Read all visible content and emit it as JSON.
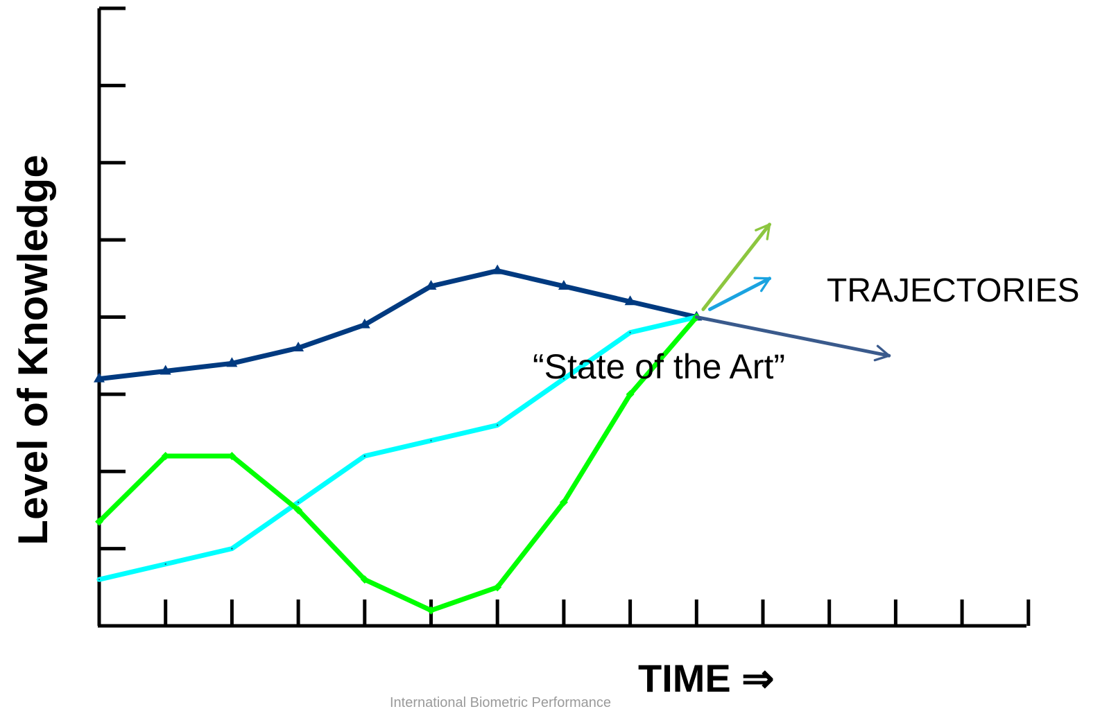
{
  "chart_data": {
    "type": "line",
    "ylabel": "Level of Knowledge",
    "xlabel": "TIME ⇒",
    "x_ticks": 15,
    "y_ticks": 9,
    "xlim": [
      0,
      14
    ],
    "ylim": [
      0,
      8
    ],
    "grid": false,
    "legend": "none",
    "annotations": {
      "trajectories": "TRAJECTORIES",
      "state_of_the_art": "“State of the Art”"
    },
    "footer_text": "International Biometric Performance",
    "series": [
      {
        "color": "#003a80",
        "marker": "triangle",
        "x": [
          0,
          1,
          2,
          3,
          4,
          5,
          6,
          7,
          8,
          9
        ],
        "y": [
          3.2,
          3.3,
          3.4,
          3.6,
          3.9,
          4.4,
          4.6,
          4.4,
          4.2,
          4.0
        ]
      },
      {
        "color": "#00ffff",
        "marker": "dot",
        "x": [
          0,
          1,
          2,
          3,
          4,
          5,
          6,
          7,
          8,
          9
        ],
        "y": [
          0.6,
          0.8,
          1.0,
          1.6,
          2.2,
          2.4,
          2.6,
          3.2,
          3.8,
          4.0
        ]
      },
      {
        "color": "#00ff00",
        "marker": "diamond",
        "x": [
          0,
          1,
          2,
          3,
          4,
          5,
          6,
          7,
          8,
          9
        ],
        "y": [
          1.35,
          2.2,
          2.2,
          1.5,
          0.6,
          0.2,
          0.5,
          1.6,
          3.0,
          4.0
        ]
      }
    ],
    "trajectory_arrows": [
      {
        "color": "#8cc63f",
        "from": [
          9.1,
          4.1
        ],
        "to": [
          10.1,
          5.2
        ]
      },
      {
        "color": "#1aa3e0",
        "from": [
          9.2,
          4.1
        ],
        "to": [
          10.1,
          4.5
        ]
      },
      {
        "color": "#3a5a8c",
        "from": [
          9.0,
          4.0
        ],
        "to": [
          11.9,
          3.5
        ]
      }
    ]
  }
}
